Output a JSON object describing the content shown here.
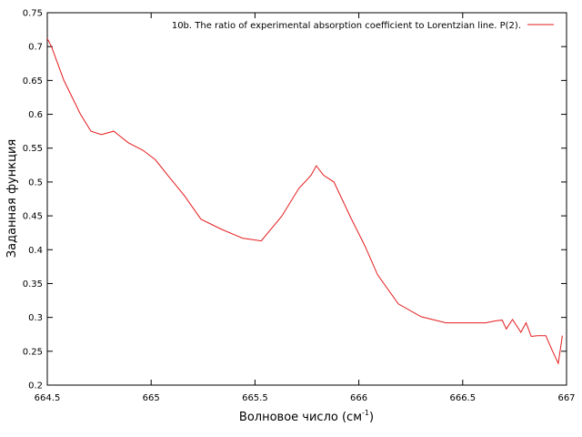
{
  "chart_data": {
    "type": "line",
    "title": "",
    "xlabel": "Волновое число (см",
    "xlabel_sup": "-1",
    "xlabel_end": ")",
    "ylabel": "Заданная функция",
    "xlim": [
      664.5,
      667
    ],
    "ylim": [
      0.2,
      0.75
    ],
    "x_ticks": [
      "664.5",
      "665",
      "665.5",
      "666",
      "666.5",
      "667"
    ],
    "y_ticks": [
      "0.2",
      "0.25",
      "0.3",
      "0.35",
      "0.4",
      "0.45",
      "0.5",
      "0.55",
      "0.6",
      "0.65",
      "0.7",
      "0.75"
    ],
    "grid": false,
    "legend_position": "top-right",
    "series": [
      {
        "name": "10b. The ratio of experimental absorption coefficient to Lorentzian line. P(2).",
        "color": "#e41a1c",
        "x": [
          664.5,
          664.52,
          664.58,
          664.66,
          664.71,
          664.76,
          664.82,
          664.89,
          664.96,
          665.02,
          665.09,
          665.16,
          665.24,
          665.34,
          665.44,
          665.53,
          665.63,
          665.71,
          665.77,
          665.795,
          665.83,
          665.88,
          665.96,
          666.03,
          666.09,
          666.19,
          666.3,
          666.42,
          666.54,
          666.61,
          666.66,
          666.69,
          666.71,
          666.74,
          666.78,
          666.805,
          666.83,
          666.86,
          666.9,
          666.93,
          666.96,
          666.98
        ],
        "y": [
          0.712,
          0.7,
          0.65,
          0.6,
          0.575,
          0.57,
          0.575,
          0.558,
          0.547,
          0.533,
          0.506,
          0.48,
          0.445,
          0.43,
          0.417,
          0.413,
          0.45,
          0.49,
          0.51,
          0.524,
          0.51,
          0.5,
          0.448,
          0.405,
          0.363,
          0.32,
          0.301,
          0.292,
          0.292,
          0.292,
          0.295,
          0.296,
          0.283,
          0.297,
          0.278,
          0.292,
          0.272,
          0.273,
          0.273,
          0.252,
          0.232,
          0.273
        ]
      }
    ]
  }
}
